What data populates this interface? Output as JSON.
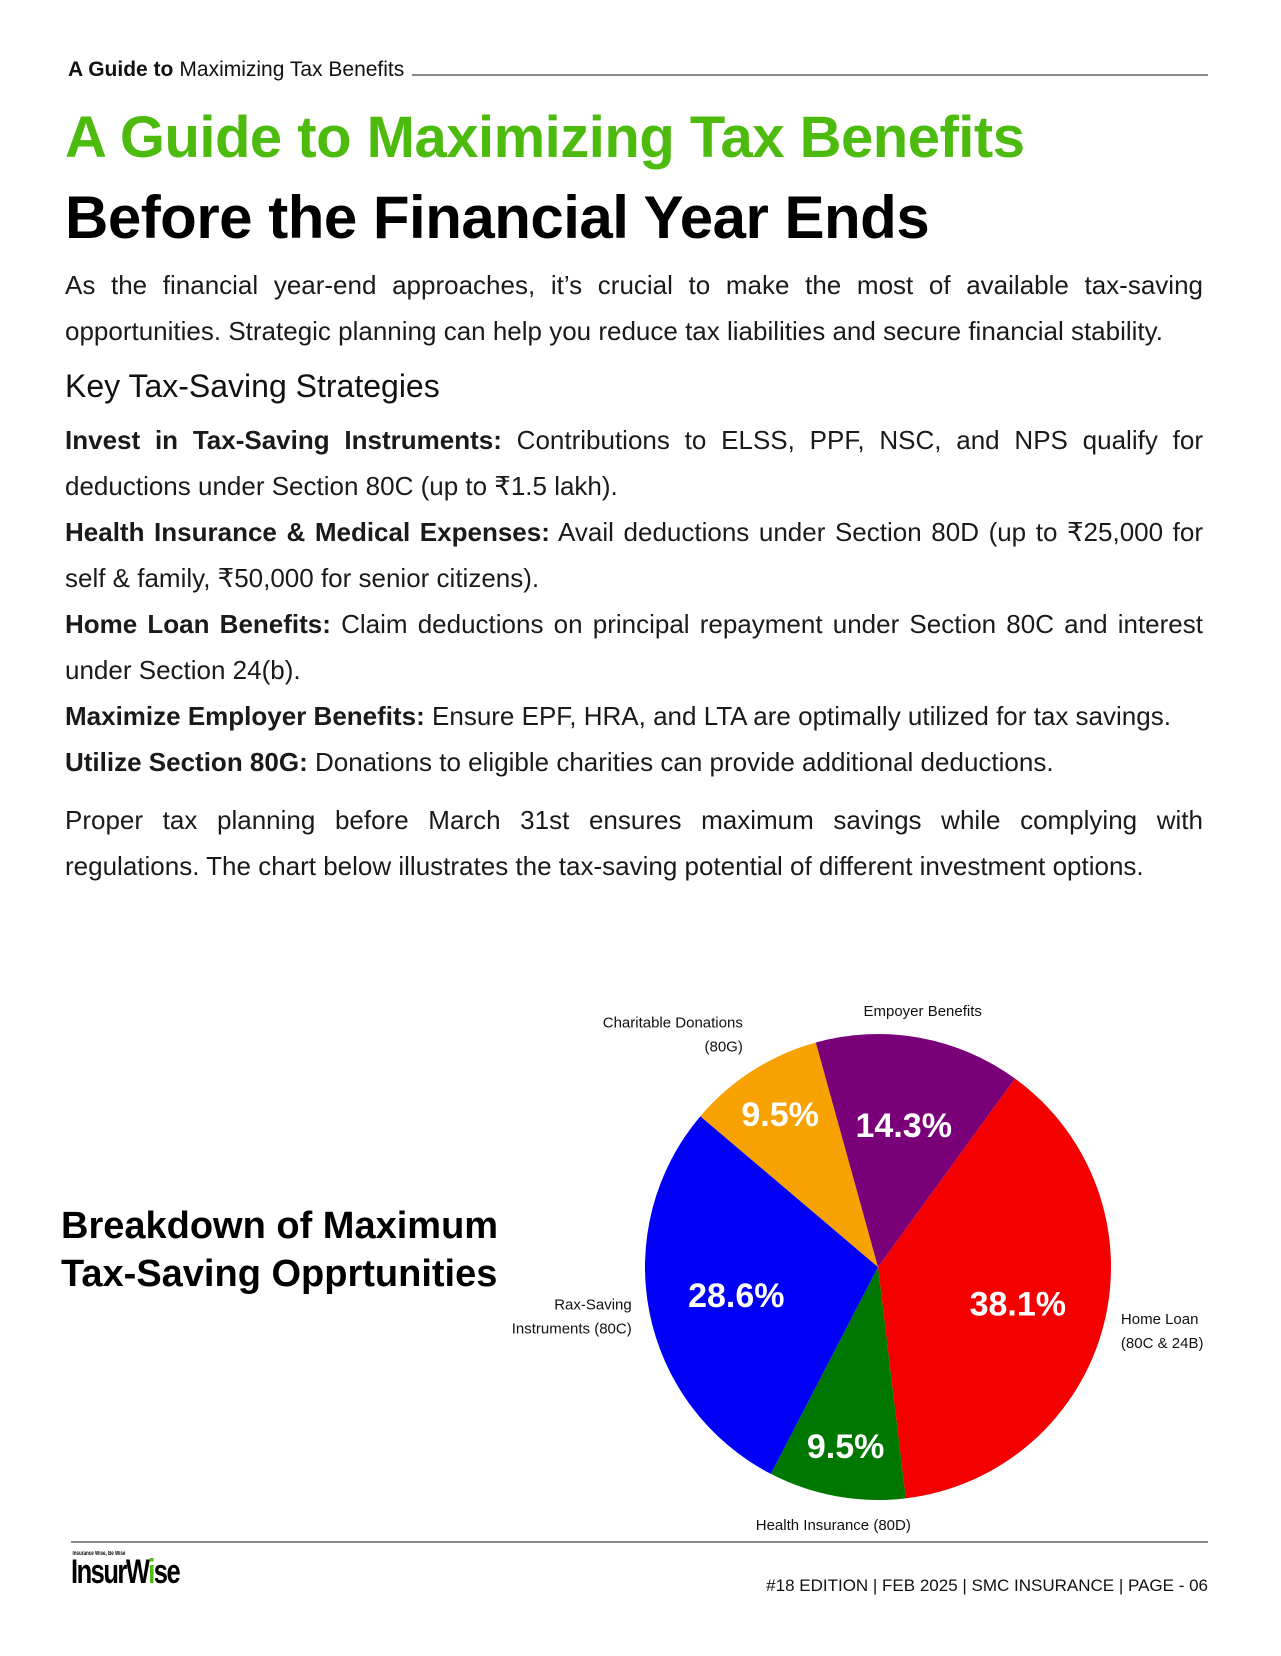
{
  "running_header": {
    "bold": "A Guide to",
    "rest": "Maximizing Tax Benefits"
  },
  "title_line1": "A Guide to Maximizing Tax Benefits",
  "title_line2": "Before the Financial Year Ends",
  "intro": "As the financial year-end approaches, it’s crucial to make the most of available tax-saving opportunities. Strategic planning can help you reduce tax liabilities and secure financial stability.",
  "section_heading": "Key Tax-Saving Strategies",
  "strategies": [
    {
      "label": "Invest in Tax-Saving Instruments:",
      "text": "Contributions to ELSS, PPF, NSC, and NPS qualify for deductions under Section 80C (up to ₹1.5 lakh)."
    },
    {
      "label": "Health Insurance & Medical Expenses:",
      "text": "Avail deductions under Section 80D (up to ₹25,000 for self & family, ₹50,000 for senior citizens)."
    },
    {
      "label": "Home Loan Benefits:",
      "text": "Claim deductions on principal repayment under Section 80C and interest under Section 24(b)."
    },
    {
      "label": "Maximize Employer Benefits:",
      "text": "Ensure EPF, HRA, and LTA are optimally utilized for tax savings."
    },
    {
      "label": "Utilize Section 80G:",
      "text": "Donations to eligible charities can provide additional deductions."
    }
  ],
  "closing": "Proper tax planning before March 31st ensures maximum savings while complying with regulations. The chart below illustrates the tax-saving potential of different investment options.",
  "chart_title_line1": "Breakdown of Maximum",
  "chart_title_line2": "Tax-Saving Opprtunities",
  "chart_data": {
    "type": "pie",
    "title": "Breakdown of Maximum Tax-Saving Opprtunities",
    "start_angle_deg": 36,
    "slices": [
      {
        "label_lines": [
          "Home Loan",
          "(80C & 24B)"
        ],
        "value": 38.1,
        "display": "38.1%",
        "color": "#f40000"
      },
      {
        "label_lines": [
          "Health Insurance (80D)"
        ],
        "value": 9.5,
        "display": "9.5%",
        "color": "#007700"
      },
      {
        "label_lines": [
          "Rax-Saving",
          "Instruments (80C)"
        ],
        "value": 28.6,
        "display": "28.6%",
        "color": "#0000f6"
      },
      {
        "label_lines": [
          "Charitable Donations",
          "(80G)"
        ],
        "value": 9.5,
        "display": "9.5%",
        "color": "#f7a200"
      },
      {
        "label_lines": [
          "Empoyer Benefits"
        ],
        "value": 14.3,
        "display": "14.3%",
        "color": "#7a007a"
      }
    ]
  },
  "footer": {
    "logo": "InsurWise",
    "logo_tagline": "Insurance Wise, Be Wise",
    "text": "#18 EDITION | FEB 2025 | SMC INSURANCE | PAGE - 06"
  }
}
